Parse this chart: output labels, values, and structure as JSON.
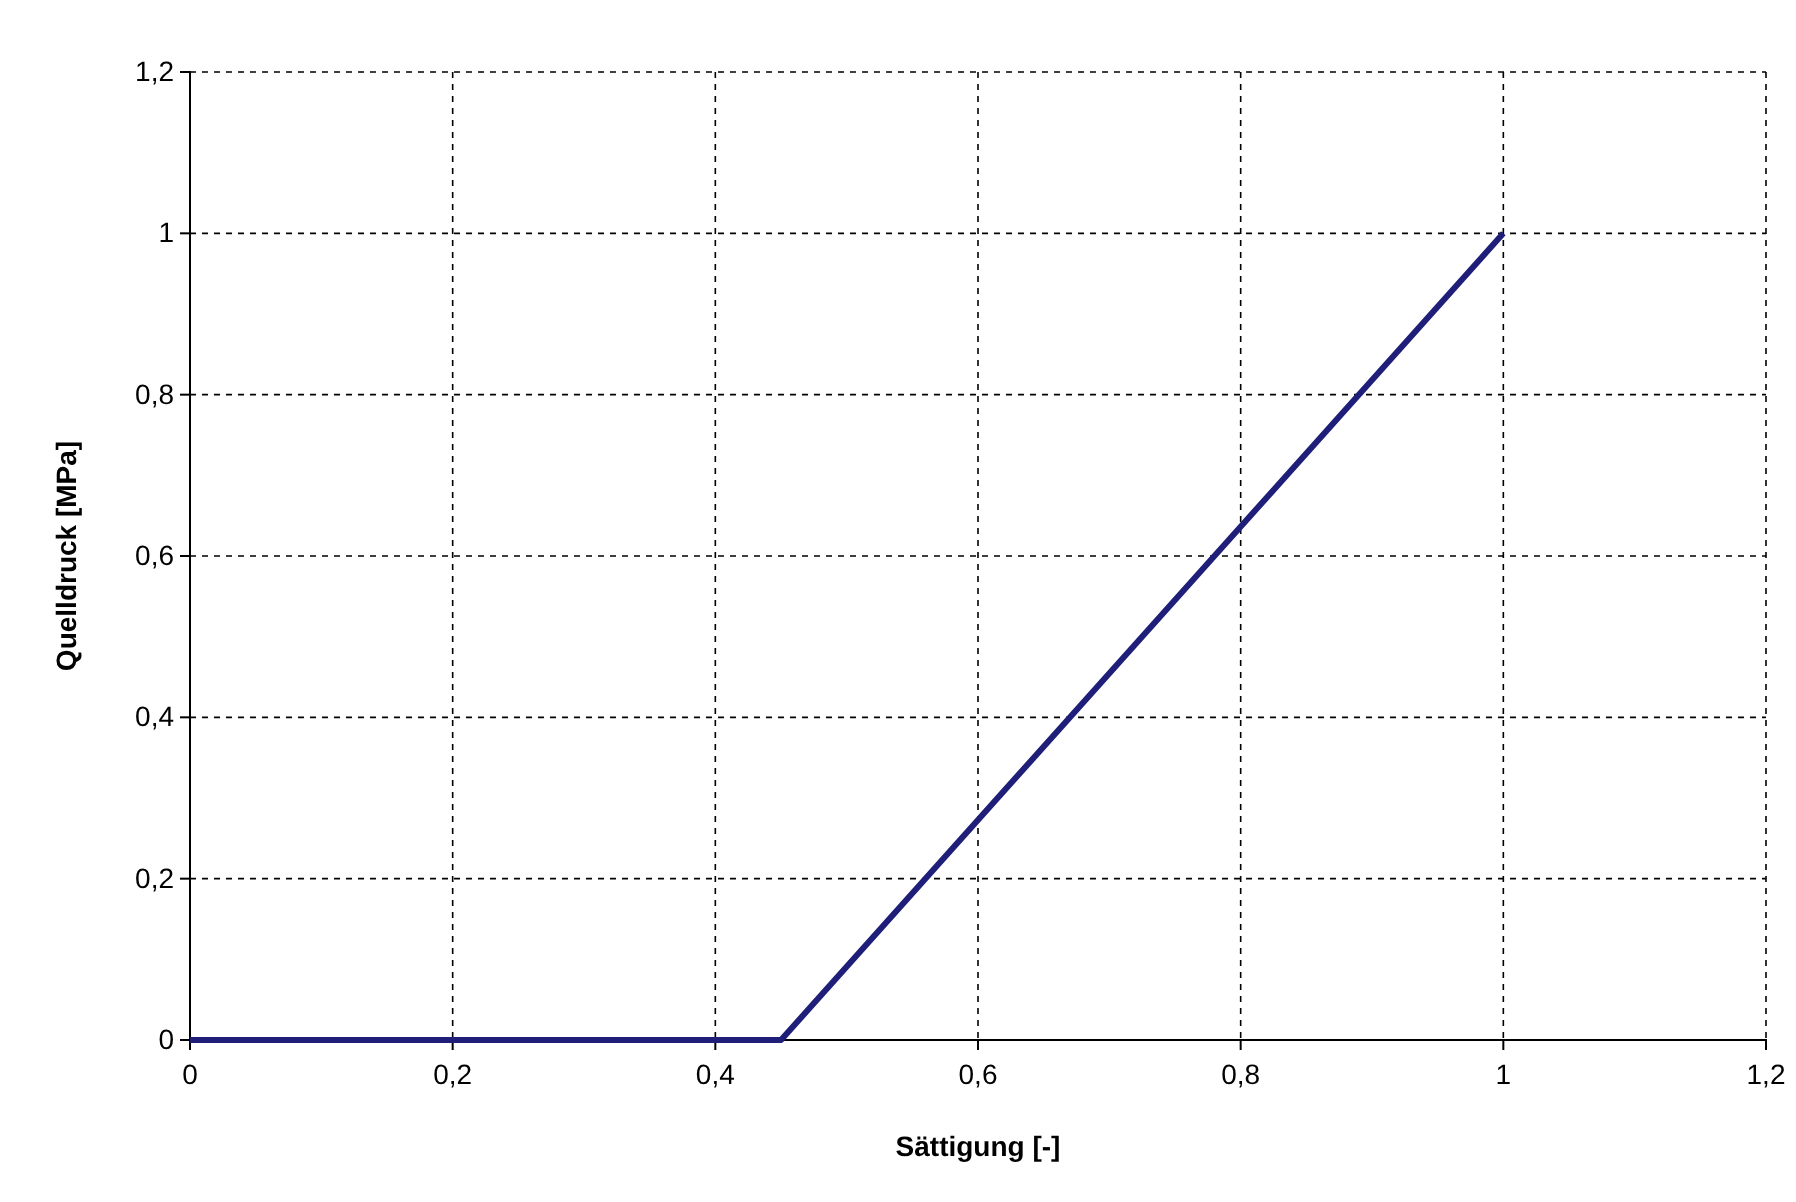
{
  "chart_data": {
    "type": "line",
    "xlabel": "Sättigung [-]",
    "ylabel": "Quelldruck [MPa]",
    "x": [
      0,
      0.45,
      1
    ],
    "series": [
      {
        "color": "#1f1f7a",
        "values": [
          0,
          0,
          1
        ]
      }
    ],
    "xlim": [
      0,
      1.2
    ],
    "ylim": [
      0,
      1.2
    ],
    "xticks": [
      0,
      {
        "value": 0.2,
        "label": "0,2"
      },
      {
        "value": 0.4,
        "label": "0,4"
      },
      {
        "value": 0.6,
        "label": "0,6"
      },
      {
        "value": 0.8,
        "label": "0,8"
      },
      1,
      {
        "value": 1.2,
        "label": "1,2"
      }
    ],
    "yticks": [
      0,
      {
        "value": 0.2,
        "label": "0,2"
      },
      {
        "value": 0.4,
        "label": "0,4"
      },
      {
        "value": 0.6,
        "label": "0,6"
      },
      {
        "value": 0.8,
        "label": "0,8"
      },
      1,
      {
        "value": 1.2,
        "label": "1,2"
      }
    ],
    "grid": true,
    "marker": "none",
    "line_style": "solid",
    "legend": false
  }
}
